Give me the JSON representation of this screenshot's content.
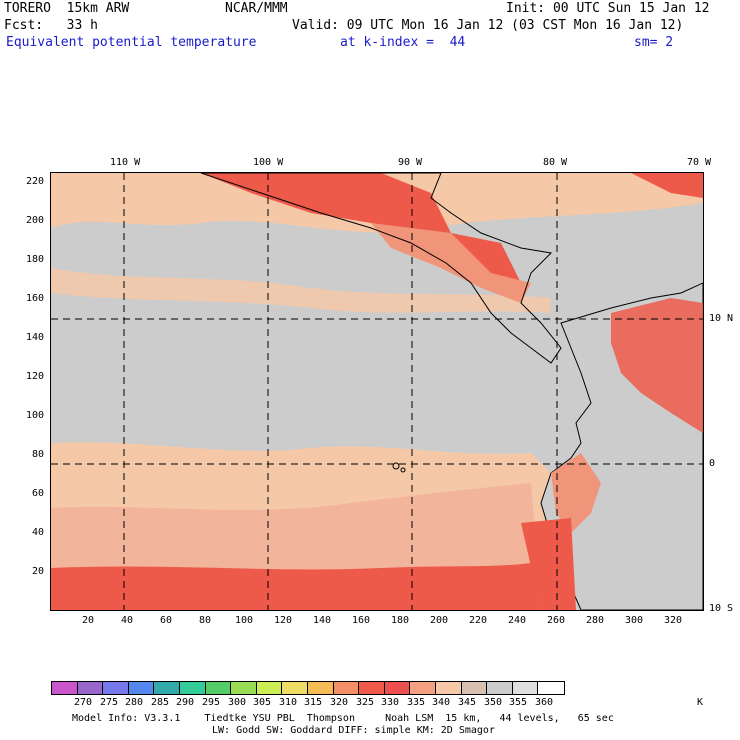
{
  "header": {
    "model": "TORERO  15km ARW",
    "org": "NCAR/MMM",
    "init": "Init: 00 UTC Sun 15 Jan 12",
    "fcst": "Fcst:   33 h",
    "valid": "Valid: 09 UTC Mon 16 Jan 12 (03 CST Mon 16 Jan 12)",
    "field": "Equivalent potential temperature",
    "level": "at k-index =  44",
    "smooth": "sm= 2"
  },
  "map": {
    "top_lon_labels": [
      "110 W",
      "100 W",
      "90 W",
      "80 W",
      "70 W"
    ],
    "right_lat_labels": [
      "10 N",
      "0",
      "10 S"
    ],
    "y_ticks": [
      "220",
      "200",
      "180",
      "160",
      "140",
      "120",
      "100",
      "80",
      "60",
      "40",
      "20"
    ],
    "x_ticks": [
      "20",
      "40",
      "60",
      "80",
      "100",
      "120",
      "140",
      "160",
      "180",
      "200",
      "220",
      "240",
      "260",
      "280",
      "300",
      "320"
    ],
    "colors": {
      "ocean_cool": "#cccccc",
      "theta_340": "#f5c8a8",
      "theta_345": "#f2b49a",
      "theta_350": "#f0947a",
      "theta_355": "#ee5a4a",
      "land": "#e8bfa8"
    }
  },
  "colorbar": {
    "labels": [
      "270",
      "275",
      "280",
      "285",
      "290",
      "295",
      "300",
      "305",
      "310",
      "315",
      "320",
      "325",
      "330",
      "335",
      "340",
      "345",
      "350",
      "355",
      "360"
    ],
    "unit": "K",
    "colors": [
      "#cc55cc",
      "#9966cc",
      "#7777ee",
      "#5588ee",
      "#33aaaa",
      "#33cc99",
      "#55cc66",
      "#99dd55",
      "#ccee55",
      "#f0dd66",
      "#f5bb55",
      "#f59066",
      "#f05a4a",
      "#ee5050",
      "#f5a080",
      "#f5c8a8",
      "#d8c0b0",
      "#cccccc",
      "#e0e0e0",
      "#ffffff"
    ]
  },
  "footer": {
    "line1": "Model Info: V3.3.1    Tiedtke YSU PBL  Thompson     Noah LSM  15 km,   44 levels,   65 sec",
    "line2": "LW: Godd SW: Goddard DIFF: simple KM: 2D Smagor"
  }
}
